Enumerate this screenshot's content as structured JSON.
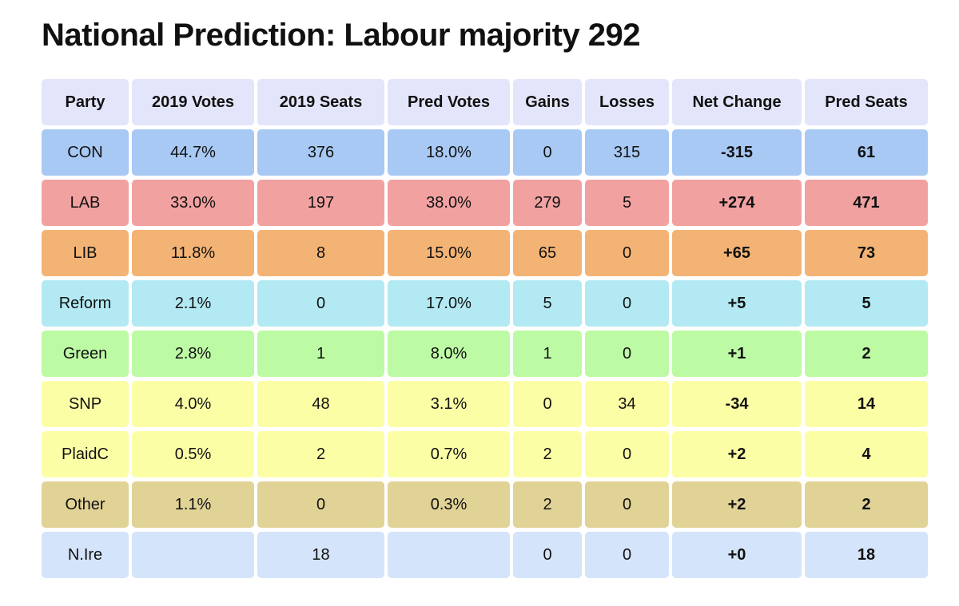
{
  "page": {
    "title": "National Prediction: Labour majority 292"
  },
  "chart_data": {
    "type": "table",
    "title": "National Prediction: Labour majority 292",
    "columns": [
      "Party",
      "2019 Votes",
      "2019 Seats",
      "Pred Votes",
      "Gains",
      "Losses",
      "Net Change",
      "Pred Seats"
    ],
    "header_color": "#e3e6fa",
    "rows": [
      {
        "party": "CON",
        "color": "#a7c9f4",
        "cells": [
          "CON",
          "44.7%",
          "376",
          "18.0%",
          "0",
          "315",
          "-315",
          "61"
        ]
      },
      {
        "party": "LAB",
        "color": "#f2a1a1",
        "cells": [
          "LAB",
          "33.0%",
          "197",
          "38.0%",
          "279",
          "5",
          "+274",
          "471"
        ]
      },
      {
        "party": "LIB",
        "color": "#f3b374",
        "cells": [
          "LIB",
          "11.8%",
          "8",
          "15.0%",
          "65",
          "0",
          "+65",
          "73"
        ]
      },
      {
        "party": "Reform",
        "color": "#b2e9f3",
        "cells": [
          "Reform",
          "2.1%",
          "0",
          "17.0%",
          "5",
          "0",
          "+5",
          "5"
        ]
      },
      {
        "party": "Green",
        "color": "#bdfaa4",
        "cells": [
          "Green",
          "2.8%",
          "1",
          "8.0%",
          "1",
          "0",
          "+1",
          "2"
        ]
      },
      {
        "party": "SNP",
        "color": "#fcfea6",
        "cells": [
          "SNP",
          "4.0%",
          "48",
          "3.1%",
          "0",
          "34",
          "-34",
          "14"
        ]
      },
      {
        "party": "PlaidC",
        "color": "#fcfea6",
        "cells": [
          "PlaidC",
          "0.5%",
          "2",
          "0.7%",
          "2",
          "0",
          "+2",
          "4"
        ]
      },
      {
        "party": "Other",
        "color": "#e1d296",
        "cells": [
          "Other",
          "1.1%",
          "0",
          "0.3%",
          "2",
          "0",
          "+2",
          "2"
        ]
      },
      {
        "party": "N.Ire",
        "color": "#d4e4fa",
        "cells": [
          "N.Ire",
          "",
          "18",
          "",
          "0",
          "0",
          "+0",
          "18"
        ]
      }
    ]
  }
}
